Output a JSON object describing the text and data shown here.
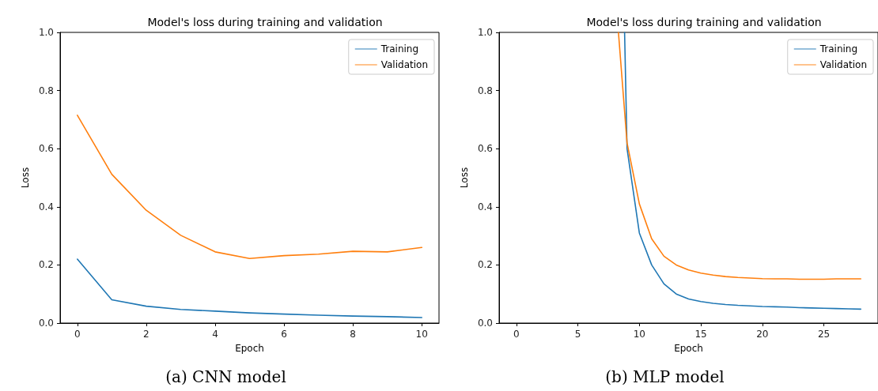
{
  "chart_data": [
    {
      "type": "line",
      "title": "Model's loss during training and validation",
      "xlabel": "Epoch",
      "ylabel": "Loss",
      "annotations": [
        "(a) CNN model"
      ],
      "x": [
        0,
        1,
        2,
        3,
        4,
        5,
        6,
        7,
        8,
        9,
        10
      ],
      "series": [
        {
          "name": "Training",
          "color": "#1f77b4",
          "values": [
            0.22,
            0.08,
            0.058,
            0.047,
            0.041,
            0.035,
            0.031,
            0.027,
            0.024,
            0.022,
            0.019
          ]
        },
        {
          "name": "Validation",
          "color": "#ff7f0e",
          "values": [
            0.715,
            0.512,
            0.388,
            0.302,
            0.245,
            0.222,
            0.232,
            0.237,
            0.247,
            0.245,
            0.26
          ]
        }
      ],
      "xlim": [
        -0.5,
        10.5
      ],
      "xticks": [
        0,
        2,
        4,
        6,
        8,
        10
      ],
      "ylim": [
        0,
        1
      ],
      "yticks": [
        {
          "value": 0,
          "label": "0.0"
        },
        {
          "value": 0.2,
          "label": "0.2"
        },
        {
          "value": 0.4,
          "label": "0.4"
        },
        {
          "value": 0.6,
          "label": "0.6"
        },
        {
          "value": 0.8,
          "label": "0.8"
        },
        {
          "value": 1,
          "label": "1.0"
        }
      ],
      "grid": false,
      "legend": "top right",
      "marker": "none",
      "line_style": "solid"
    },
    {
      "type": "line",
      "title": "Model's loss during training and validation",
      "xlabel": "Epoch",
      "ylabel": "Loss",
      "annotations": [
        "(b) MLP model"
      ],
      "series": [
        {
          "name": "Training",
          "color": "#1f77b4",
          "x": [
            8.8,
            9,
            10,
            11,
            12,
            13,
            14,
            15,
            16,
            17,
            18,
            19,
            20,
            21,
            22,
            23,
            24,
            25,
            26,
            27,
            28
          ],
          "values": [
            1.0,
            0.6,
            0.31,
            0.2,
            0.135,
            0.1,
            0.083,
            0.074,
            0.068,
            0.064,
            0.061,
            0.059,
            0.057,
            0.056,
            0.055,
            0.053,
            0.052,
            0.051,
            0.05,
            0.049,
            0.048
          ]
        },
        {
          "name": "Validation",
          "color": "#ff7f0e",
          "x": [
            8.3,
            9,
            10,
            11,
            12,
            13,
            14,
            15,
            16,
            17,
            18,
            19,
            20,
            21,
            22,
            23,
            24,
            25,
            26,
            27,
            28
          ],
          "values": [
            1.0,
            0.62,
            0.41,
            0.29,
            0.23,
            0.2,
            0.183,
            0.172,
            0.165,
            0.16,
            0.157,
            0.155,
            0.153,
            0.152,
            0.152,
            0.151,
            0.151,
            0.151,
            0.152,
            0.152,
            0.152
          ]
        }
      ],
      "xlim": [
        -1.4,
        29.4
      ],
      "xticks": [
        0,
        5,
        10,
        15,
        20,
        25
      ],
      "ylim": [
        0,
        1
      ],
      "yticks": [
        {
          "value": 0,
          "label": "0.0"
        },
        {
          "value": 0.2,
          "label": "0.2"
        },
        {
          "value": 0.4,
          "label": "0.4"
        },
        {
          "value": 0.6,
          "label": "0.6"
        },
        {
          "value": 0.8,
          "label": "0.8"
        },
        {
          "value": 1,
          "label": "1.0"
        }
      ],
      "grid": false,
      "legend": "top right",
      "marker": "none",
      "line_style": "solid"
    }
  ]
}
